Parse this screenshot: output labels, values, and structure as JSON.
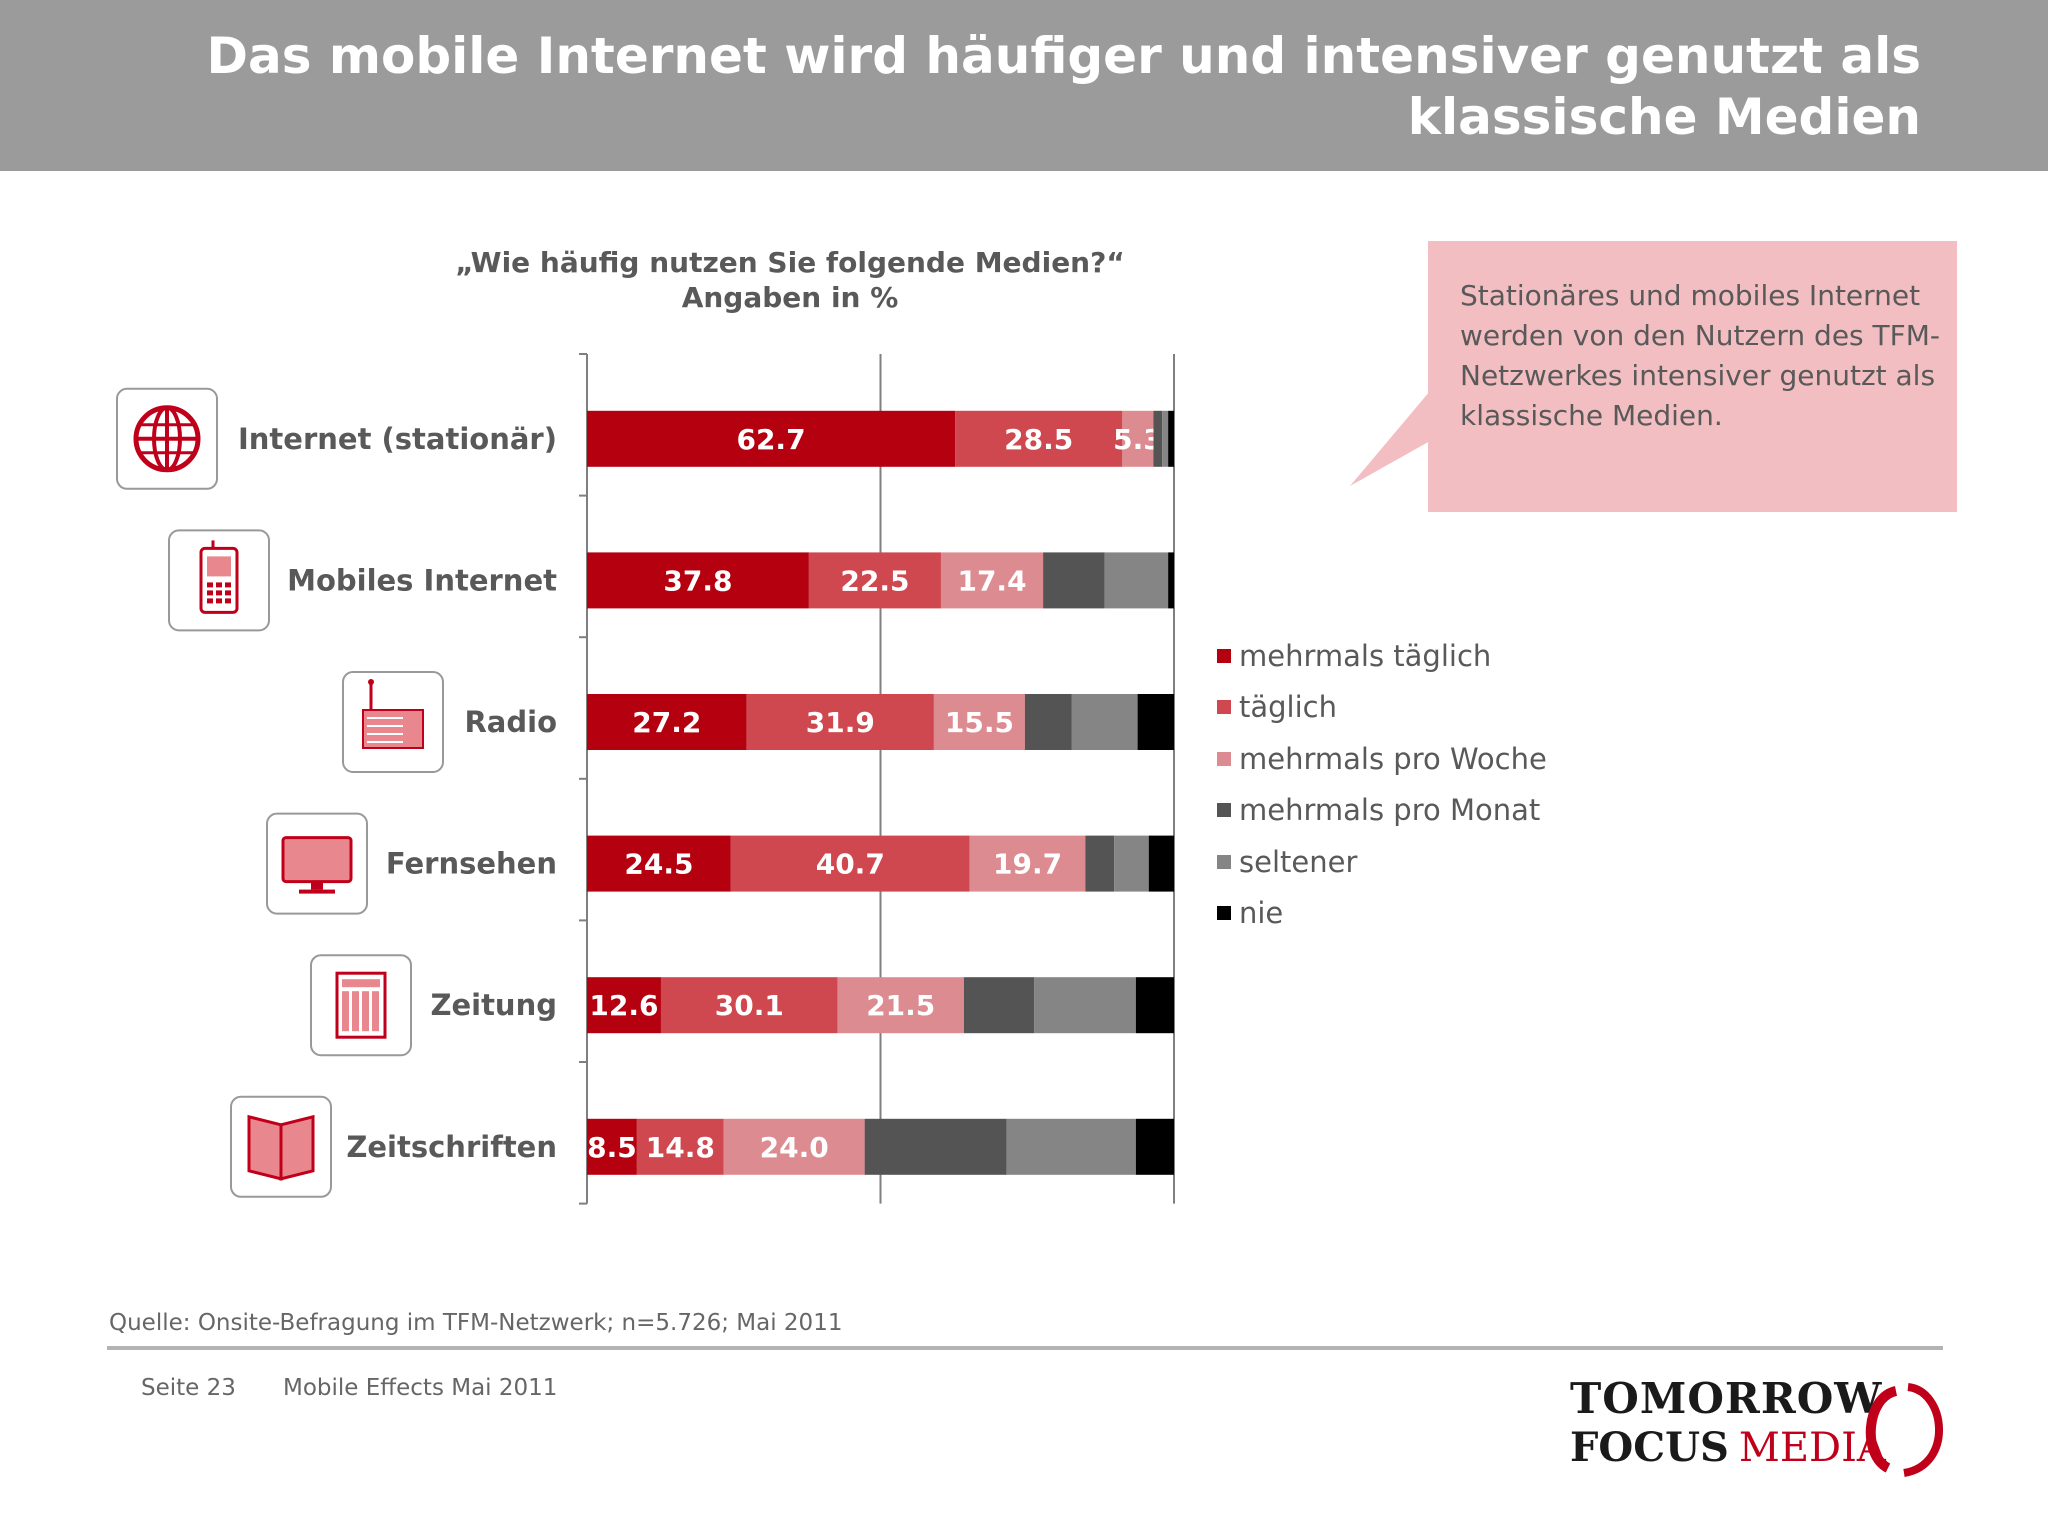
{
  "header": {
    "title": "Das mobile Internet wird häufiger und intensiver genutzt als klassische Medien"
  },
  "chart_subtitle": {
    "line1": "„Wie häufig nutzen Sie folgende Medien?“",
    "line2": "Angaben in %"
  },
  "callout": {
    "text": "Stationäres und mobiles Internet werden von den Nutzern des TFM-Netzwerkes intensiver genutzt als klassische Medien."
  },
  "chart_data": {
    "type": "bar",
    "orientation": "horizontal",
    "stacked": true,
    "xlim": [
      0,
      100
    ],
    "categories": [
      "Internet (stationär)",
      "Mobiles Internet",
      "Radio",
      "Fernsehen",
      "Zeitung",
      "Zeitschriften"
    ],
    "category_icons": [
      "globe-icon",
      "mobile-phone-icon",
      "radio-icon",
      "tv-icon",
      "newspaper-icon",
      "magazine-icon"
    ],
    "series": [
      {
        "name": "mehrmals täglich",
        "color": "#b5000f",
        "values": [
          62.7,
          37.8,
          27.2,
          24.5,
          12.6,
          8.5
        ],
        "labeled": true
      },
      {
        "name": "täglich",
        "color": "#d0484f",
        "values": [
          28.5,
          22.5,
          31.9,
          40.7,
          30.1,
          14.8
        ],
        "labeled": true
      },
      {
        "name": "mehrmals pro Woche",
        "color": "#dc8b90",
        "values": [
          5.3,
          17.4,
          15.5,
          19.7,
          21.5,
          24.0
        ],
        "labeled": true
      },
      {
        "name": "mehrmals pro Monat",
        "color": "#545454",
        "values": [
          1.5,
          10.5,
          8.0,
          4.9,
          12.0,
          24.2
        ],
        "labeled": false
      },
      {
        "name": "seltener",
        "color": "#858585",
        "values": [
          1.0,
          10.8,
          11.2,
          5.9,
          17.3,
          22.0
        ],
        "labeled": false
      },
      {
        "name": "nie",
        "color": "#000000",
        "values": [
          1.0,
          1.0,
          6.2,
          4.3,
          6.5,
          6.5
        ],
        "labeled": false
      }
    ],
    "gridlines_x": [
      50,
      100
    ],
    "legend_position": "right"
  },
  "source": "Quelle: Onsite-Befragung im TFM-Netzwerk; n=5.726; Mai 2011",
  "footer": {
    "page": "Seite 23",
    "doc": "Mobile Effects Mai 2011"
  },
  "logo": {
    "line1": "TOMORROW",
    "line2a": "FOCUS",
    "line2b": "MEDIA"
  }
}
